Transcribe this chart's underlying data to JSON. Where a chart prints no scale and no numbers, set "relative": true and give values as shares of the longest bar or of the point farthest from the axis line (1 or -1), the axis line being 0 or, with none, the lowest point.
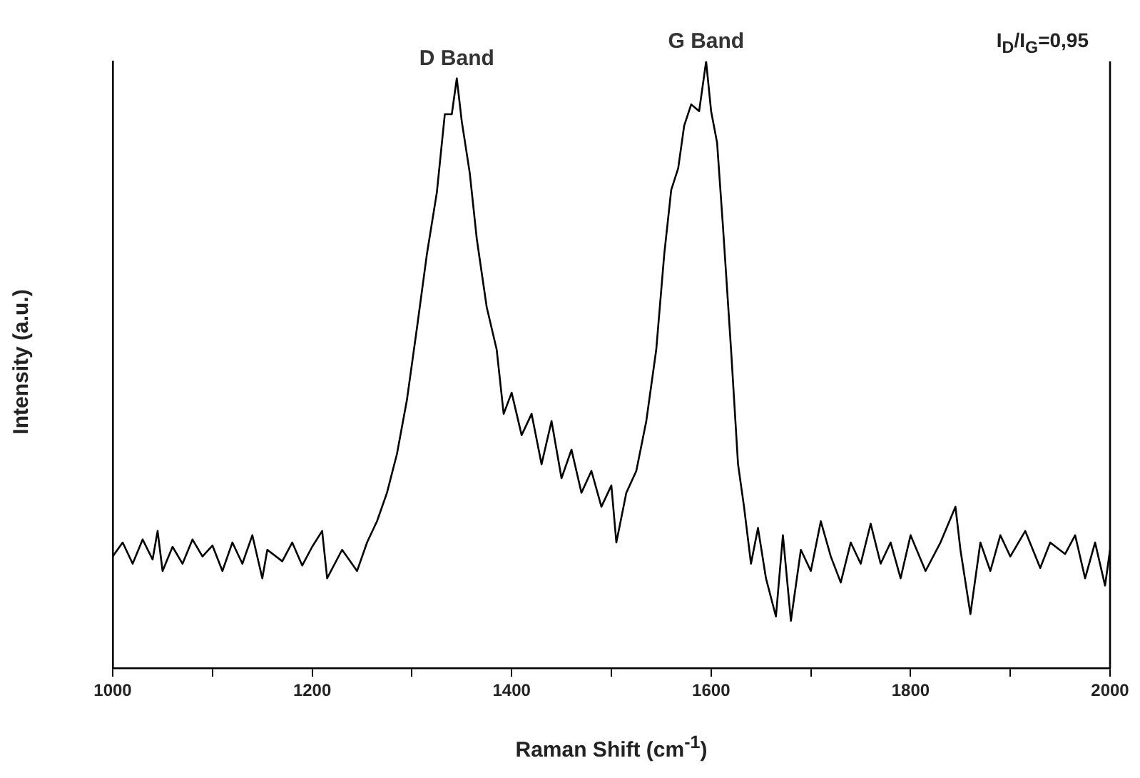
{
  "chart_data": {
    "type": "line",
    "relative": true,
    "xlabel": "Raman Shift (cm$^{-1}$)",
    "ylabel": "Intensity (a.u.)",
    "xlim": [
      1000,
      2000
    ],
    "xticks": [
      1000,
      {
        "value": 1100,
        "label": null
      },
      1200,
      {
        "value": 1300,
        "label": null
      },
      1400,
      {
        "value": 1500,
        "label": null
      },
      1600,
      {
        "value": 1700,
        "label": null
      },
      1800,
      {
        "value": 1900,
        "label": null
      },
      2000
    ],
    "grid": false,
    "legend": false,
    "marker": "none",
    "line_style": "solid",
    "annotations": [
      {
        "text": "D Band",
        "x": 1345,
        "y": 0.972
      },
      {
        "text": "G Band",
        "x": 1595,
        "y": 1
      },
      "I$_{D}$/I$_{G}$=0,95"
    ],
    "series": [
      {
        "color": "#000000",
        "x": [
          1000,
          1010,
          1020,
          1030,
          1040,
          1045,
          1050,
          1060,
          1070,
          1080,
          1090,
          1100,
          1110,
          1120,
          1130,
          1140,
          1150,
          1155,
          1170,
          1180,
          1190,
          1200,
          1210,
          1215,
          1230,
          1245,
          1255,
          1265,
          1275,
          1285,
          1295,
          1305,
          1315,
          1325,
          1333,
          1340,
          1345,
          1350,
          1358,
          1365,
          1375,
          1385,
          1392,
          1400,
          1410,
          1420,
          1430,
          1440,
          1450,
          1460,
          1470,
          1480,
          1490,
          1500,
          1505,
          1515,
          1525,
          1535,
          1545,
          1553,
          1560,
          1567,
          1573,
          1580,
          1588,
          1595,
          1600,
          1606,
          1612,
          1620,
          1627,
          1633,
          1640,
          1647,
          1655,
          1665,
          1672,
          1680,
          1690,
          1700,
          1710,
          1720,
          1730,
          1740,
          1750,
          1760,
          1770,
          1780,
          1790,
          1800,
          1815,
          1830,
          1845,
          1850,
          1860,
          1870,
          1880,
          1890,
          1900,
          1915,
          1930,
          1940,
          1955,
          1965,
          1975,
          1985,
          1995,
          2000
        ],
        "values": [
          0.184,
          0.207,
          0.172,
          0.212,
          0.179,
          0.226,
          0.16,
          0.2,
          0.172,
          0.212,
          0.184,
          0.202,
          0.16,
          0.207,
          0.172,
          0.219,
          0.148,
          0.195,
          0.176,
          0.207,
          0.169,
          0.2,
          0.226,
          0.148,
          0.195,
          0.16,
          0.207,
          0.242,
          0.289,
          0.353,
          0.442,
          0.56,
          0.682,
          0.784,
          0.913,
          0.913,
          0.972,
          0.901,
          0.816,
          0.708,
          0.595,
          0.525,
          0.419,
          0.454,
          0.384,
          0.419,
          0.336,
          0.407,
          0.313,
          0.36,
          0.289,
          0.325,
          0.266,
          0.301,
          0.207,
          0.289,
          0.325,
          0.407,
          0.525,
          0.682,
          0.788,
          0.824,
          0.894,
          0.929,
          0.918,
          1,
          0.918,
          0.866,
          0.725,
          0.525,
          0.336,
          0.266,
          0.172,
          0.231,
          0.148,
          0.085,
          0.219,
          0.078,
          0.195,
          0.16,
          0.242,
          0.184,
          0.141,
          0.207,
          0.172,
          0.238,
          0.172,
          0.207,
          0.148,
          0.219,
          0.16,
          0.207,
          0.266,
          0.195,
          0.089,
          0.207,
          0.16,
          0.219,
          0.184,
          0.226,
          0.165,
          0.207,
          0.188,
          0.219,
          0.148,
          0.207,
          0.136,
          0.195
        ]
      }
    ]
  }
}
